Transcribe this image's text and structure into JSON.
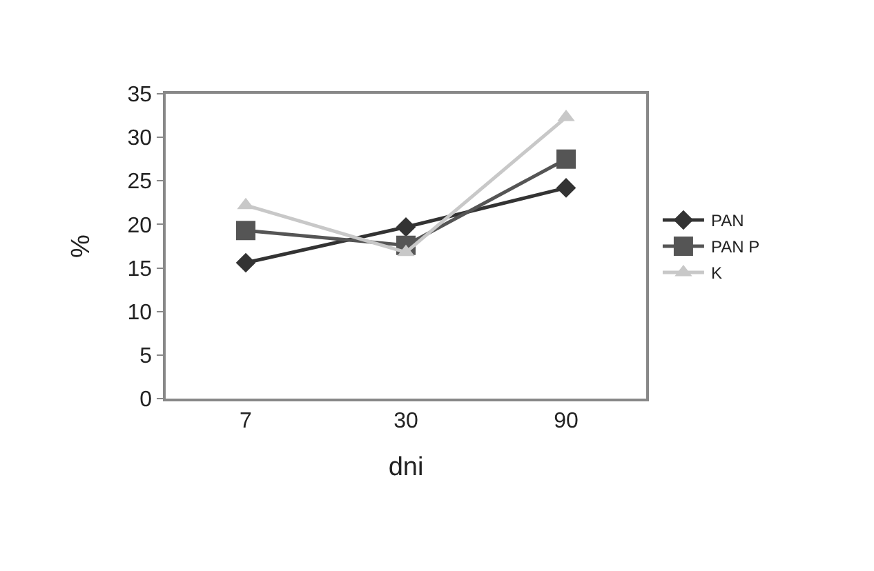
{
  "chart_data": {
    "type": "line",
    "xlabel": "dni",
    "ylabel": "%",
    "categories": [
      "7",
      "30",
      "90"
    ],
    "ylim": [
      0,
      35
    ],
    "yticks": [
      0,
      5,
      10,
      15,
      20,
      25,
      30,
      35
    ],
    "grid": false,
    "legend": "right",
    "line_style": "solid",
    "series": [
      {
        "name": "PAN",
        "color": "#333333",
        "marker": "diamond",
        "values": [
          15.6,
          19.7,
          24.2
        ]
      },
      {
        "name": "PAN P",
        "color": "#555555",
        "marker": "square",
        "values": [
          19.3,
          17.6,
          27.5
        ]
      },
      {
        "name": "K",
        "color": "#c8c8c8",
        "marker": "triangle",
        "values": [
          22.2,
          16.8,
          32.3
        ]
      }
    ]
  }
}
